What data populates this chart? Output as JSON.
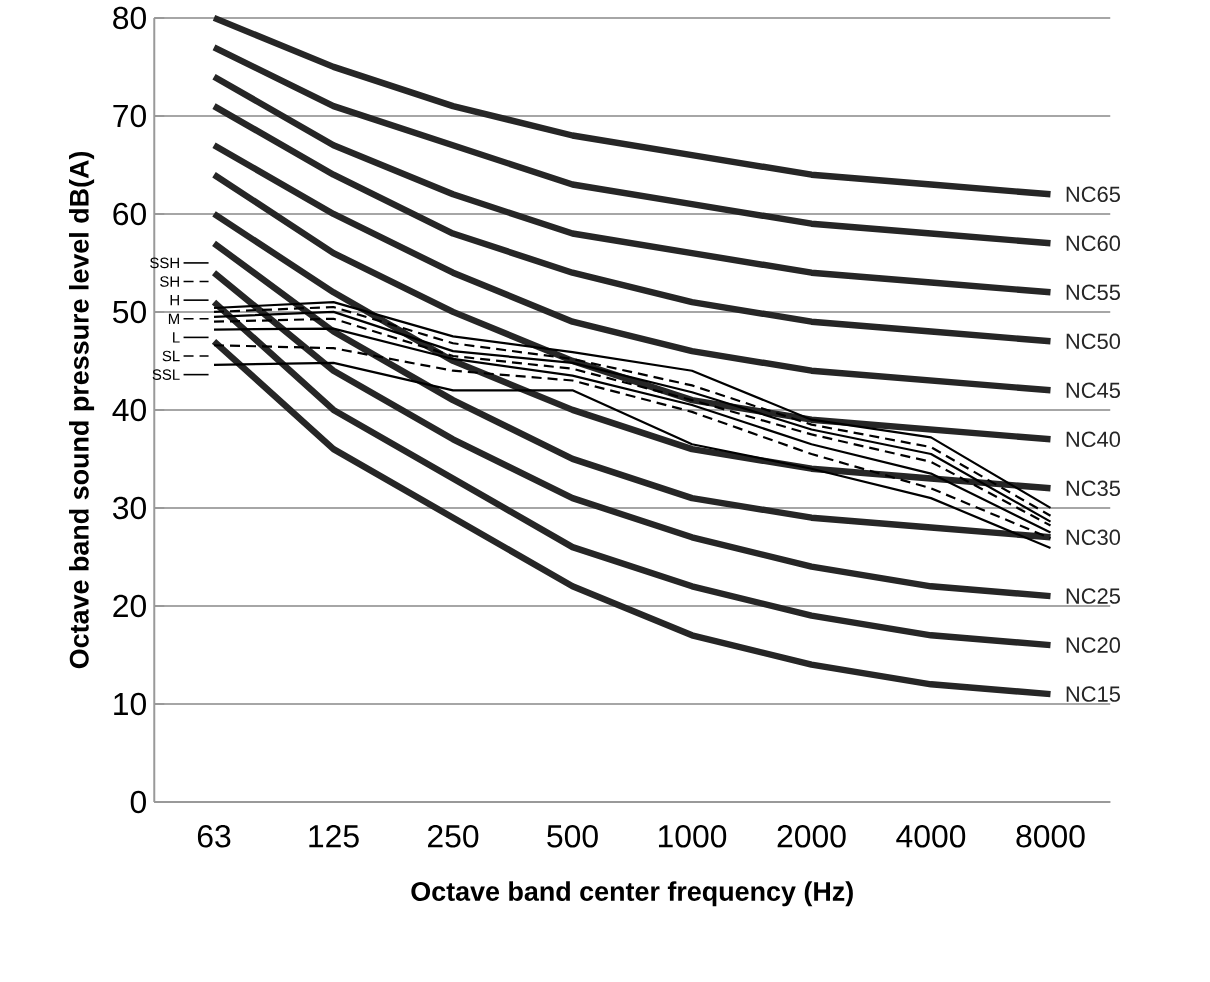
{
  "chart_data": {
    "type": "line",
    "xlabel": "Octave band center frequency (Hz)",
    "ylabel": "Octave band sound pressure level dB(A)",
    "categories": [
      "63",
      "125",
      "250",
      "500",
      "1000",
      "2000",
      "4000",
      "8000"
    ],
    "ylim": [
      0,
      80
    ],
    "yticks": [
      0,
      10,
      20,
      30,
      40,
      50,
      60,
      70,
      80
    ],
    "grid": "y",
    "legend": "left",
    "series": [
      {
        "name": "NC65",
        "color": "#262626",
        "values": [
          80,
          75,
          71,
          68,
          66,
          64,
          63,
          62
        ]
      },
      {
        "name": "NC60",
        "color": "#262626",
        "values": [
          77,
          71,
          67,
          63,
          61,
          59,
          58,
          57
        ]
      },
      {
        "name": "NC55",
        "color": "#262626",
        "values": [
          74,
          67,
          62,
          58,
          56,
          54,
          53,
          52
        ]
      },
      {
        "name": "NC50",
        "color": "#262626",
        "values": [
          71,
          64,
          58,
          54,
          51,
          49,
          48,
          47
        ]
      },
      {
        "name": "NC45",
        "color": "#262626",
        "values": [
          67,
          60,
          54,
          49,
          46,
          44,
          43,
          42
        ]
      },
      {
        "name": "NC40",
        "color": "#262626",
        "values": [
          64,
          56,
          50,
          45,
          41,
          39,
          38,
          37
        ]
      },
      {
        "name": "NC35",
        "color": "#262626",
        "values": [
          60,
          52,
          45,
          40,
          36,
          34,
          33,
          32
        ]
      },
      {
        "name": "NC30",
        "color": "#262626",
        "values": [
          57,
          48,
          41,
          35,
          31,
          29,
          28,
          27
        ]
      },
      {
        "name": "NC25",
        "color": "#262626",
        "values": [
          54,
          44,
          37,
          31,
          27,
          24,
          22,
          21
        ]
      },
      {
        "name": "NC20",
        "color": "#262626",
        "values": [
          51,
          40,
          33,
          26,
          22,
          19,
          17,
          16
        ]
      },
      {
        "name": "NC15",
        "color": "#262626",
        "values": [
          47,
          36,
          29,
          22,
          17,
          14,
          12,
          11
        ]
      },
      {
        "name": "SSH",
        "color": "#000000",
        "line_style": "solid",
        "values": [
          50.4,
          51.0,
          47.5,
          45.9,
          44.0,
          39.0,
          37.2,
          30.0
        ]
      },
      {
        "name": "SH",
        "color": "#000000",
        "line_style": "dashed",
        "values": [
          50.0,
          50.5,
          46.8,
          45.2,
          42.5,
          38.5,
          36.2,
          29.2
        ]
      },
      {
        "name": "H",
        "color": "#000000",
        "line_style": "solid",
        "values": [
          49.5,
          50.0,
          46.0,
          44.8,
          41.8,
          38.0,
          35.5,
          28.6
        ]
      },
      {
        "name": "M",
        "color": "#000000",
        "line_style": "dashed",
        "values": [
          49.0,
          49.3,
          45.5,
          44.2,
          41.0,
          37.5,
          34.7,
          28.2
        ]
      },
      {
        "name": "L",
        "color": "#000000",
        "line_style": "solid",
        "values": [
          48.2,
          48.3,
          45.2,
          43.5,
          40.5,
          36.5,
          33.5,
          27.5
        ]
      },
      {
        "name": "SL",
        "color": "#000000",
        "line_style": "dashed",
        "values": [
          46.6,
          46.3,
          44.0,
          43.0,
          39.8,
          35.5,
          32.0,
          26.9
        ]
      },
      {
        "name": "SSL",
        "color": "#000000",
        "line_style": "solid",
        "values": [
          44.6,
          44.8,
          42.0,
          42.0,
          36.5,
          34.0,
          31.0,
          25.9
        ]
      }
    ]
  }
}
